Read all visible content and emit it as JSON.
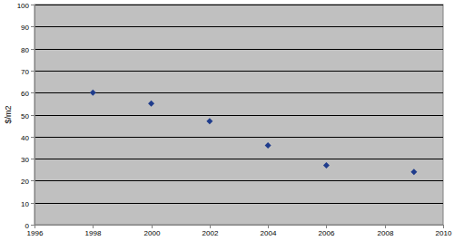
{
  "chart_data": {
    "type": "scatter",
    "y_label": "$/m2",
    "x": [
      1998,
      2000,
      2002,
      2004,
      2006,
      2009
    ],
    "values": [
      60,
      55,
      47,
      36,
      27,
      24
    ],
    "color": "#1f3c8c",
    "marker": "diamond",
    "xlim": [
      1996,
      2010
    ],
    "xticks": [
      1996,
      1998,
      2000,
      2002,
      2004,
      2006,
      2008,
      2010
    ],
    "ylim": [
      0,
      100
    ],
    "yticks": [
      0,
      10,
      20,
      30,
      40,
      50,
      60,
      70,
      80,
      90,
      100
    ],
    "grid": true
  }
}
